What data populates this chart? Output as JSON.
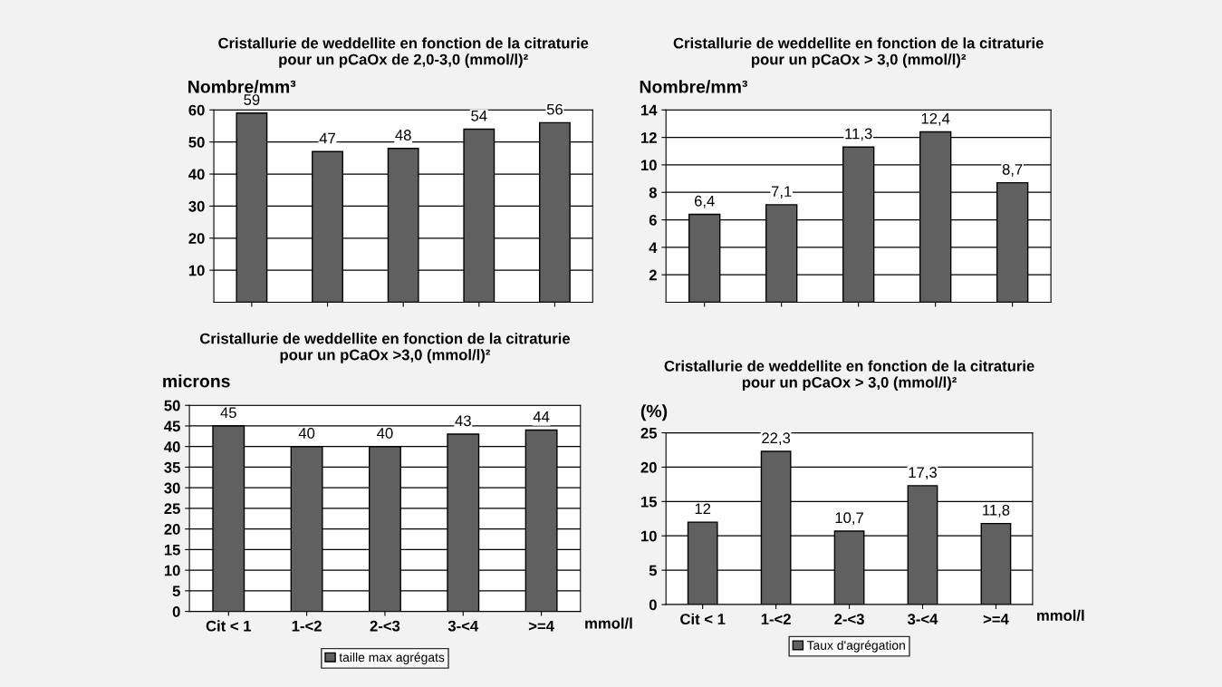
{
  "chart_data": [
    {
      "type": "bar",
      "title": "Cristallurie de weddellite en fonction de la citraturie\npour un pCaOx de 2,0-3,0 (mmol/l)²",
      "ylabel": "Nombre/mm³",
      "categories": [
        null,
        null,
        null,
        null,
        null
      ],
      "series": [
        {
          "color": "#606060",
          "values": [
            59,
            47,
            48,
            54,
            56
          ]
        }
      ],
      "ylim": [
        0,
        60
      ],
      "yticks": [
        10,
        20,
        30,
        40,
        50,
        60
      ],
      "grid": "y",
      "data_labels": true,
      "legend": false
    },
    {
      "type": "bar",
      "title": "Cristallurie de weddellite en fonction de la citraturie\npour un pCaOx > 3,0 (mmol/l)²",
      "ylabel": "Nombre/mm³",
      "categories": [
        null,
        null,
        null,
        null,
        null
      ],
      "series": [
        {
          "color": "#606060",
          "values": [
            6.4,
            7.1,
            11.3,
            12.4,
            8.7
          ]
        }
      ],
      "value_labels": [
        "6,4",
        "7,1",
        "11,3",
        "12,4",
        "8,7"
      ],
      "ylim": [
        0,
        14
      ],
      "yticks": [
        2,
        4,
        6,
        8,
        10,
        12,
        14
      ],
      "grid": "y",
      "legend": false
    },
    {
      "type": "bar",
      "title": "Cristallurie de weddellite en fonction de la citraturie\npour un pCaOx >3,0 (mmol/l)²",
      "ylabel": "microns",
      "xlabel": "mmol/l",
      "categories": [
        "Cit < 1",
        "1-<2",
        "2-<3",
        "3-<4",
        ">=4"
      ],
      "series": [
        {
          "name": "taille max agrégats",
          "color": "#606060",
          "values": [
            45,
            40,
            40,
            43,
            44
          ]
        }
      ],
      "ylim": [
        0,
        50
      ],
      "yticks": [
        0,
        5,
        10,
        15,
        20,
        25,
        30,
        35,
        40,
        45,
        50
      ],
      "grid": "y",
      "data_labels": true,
      "legend": "bottom"
    },
    {
      "type": "bar",
      "title": "Cristallurie de weddellite en fonction de la citraturie\npour un pCaOx > 3,0 (mmol/l)²",
      "ylabel": "(%)",
      "xlabel": "mmol/l",
      "categories": [
        "Cit < 1",
        "1-<2",
        "2-<3",
        "3-<4",
        ">=4"
      ],
      "series": [
        {
          "name": "Taux d'agrégation",
          "color": "#606060",
          "values": [
            12,
            22.3,
            10.7,
            17.3,
            11.8
          ]
        }
      ],
      "value_labels": [
        "12",
        "22,3",
        "10,7",
        "17,3",
        "11,8"
      ],
      "ylim": [
        0,
        25
      ],
      "yticks": [
        0,
        5,
        10,
        15,
        20,
        25
      ],
      "grid": "y",
      "legend": "bottom"
    }
  ]
}
